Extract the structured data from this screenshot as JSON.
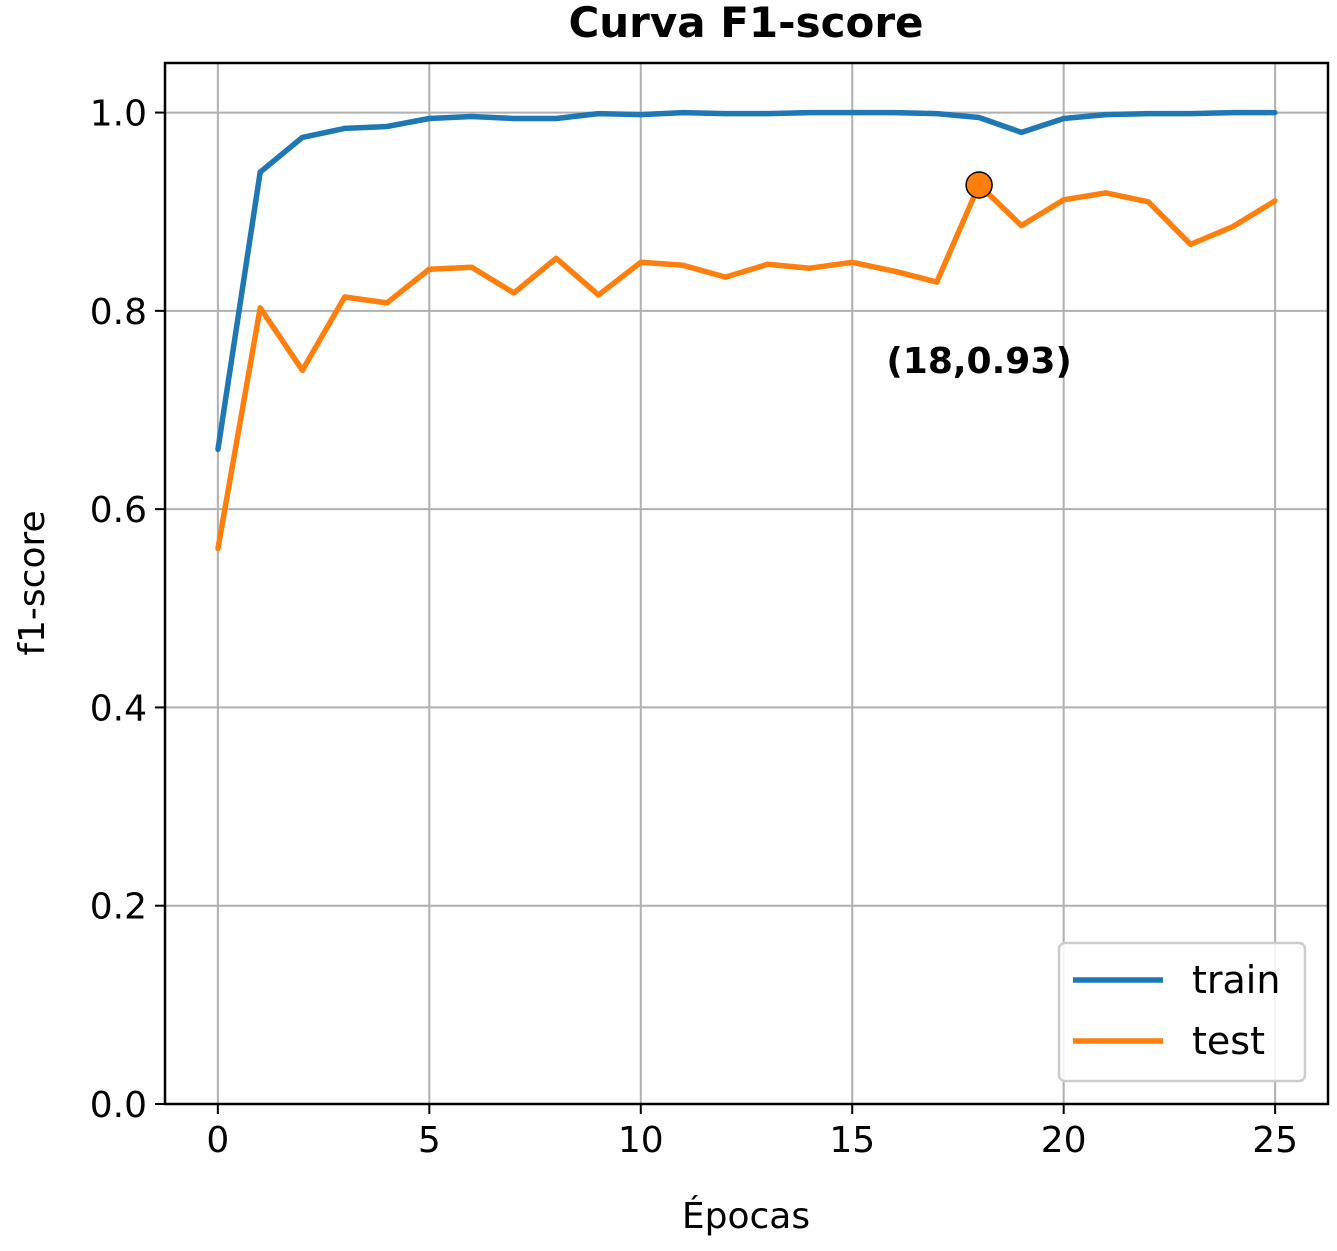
{
  "chart_data": {
    "type": "line",
    "title": "Curva F1-score",
    "xlabel": "Épocas",
    "ylabel": "f1-score",
    "xlim": [
      -1.25,
      26.25
    ],
    "ylim": [
      0.0,
      1.05
    ],
    "xticks": [
      0,
      5,
      10,
      15,
      20,
      25
    ],
    "xtick_labels": [
      "0",
      "5",
      "10",
      "15",
      "20",
      "25"
    ],
    "yticks": [
      0.0,
      0.2,
      0.4,
      0.6,
      0.8,
      1.0
    ],
    "ytick_labels": [
      "0.0",
      "0.2",
      "0.4",
      "0.6",
      "0.8",
      "1.0"
    ],
    "grid": true,
    "legend_position": "lower-right",
    "x": [
      0,
      1,
      2,
      3,
      4,
      5,
      6,
      7,
      8,
      9,
      10,
      11,
      12,
      13,
      14,
      15,
      16,
      17,
      18,
      19,
      20,
      21,
      22,
      23,
      24,
      25
    ],
    "series": [
      {
        "name": "train",
        "color": "#1f77b4",
        "values": [
          0.66,
          0.94,
          0.975,
          0.984,
          0.986,
          0.994,
          0.996,
          0.994,
          0.994,
          0.999,
          0.998,
          1.0,
          0.999,
          0.999,
          1.0,
          1.0,
          1.0,
          0.999,
          0.995,
          0.98,
          0.994,
          0.998,
          0.999,
          0.999,
          1.0,
          1.0
        ]
      },
      {
        "name": "test",
        "color": "#ff7f0e",
        "values": [
          0.56,
          0.803,
          0.74,
          0.814,
          0.808,
          0.842,
          0.844,
          0.818,
          0.853,
          0.816,
          0.849,
          0.846,
          0.834,
          0.847,
          0.843,
          0.849,
          0.84,
          0.829,
          0.927,
          0.886,
          0.912,
          0.919,
          0.91,
          0.867,
          0.885,
          0.911
        ]
      }
    ],
    "annotation": {
      "label": "(18,0.93)",
      "x": 18,
      "y": 0.927,
      "marker_color": "#ff7f0e"
    }
  }
}
